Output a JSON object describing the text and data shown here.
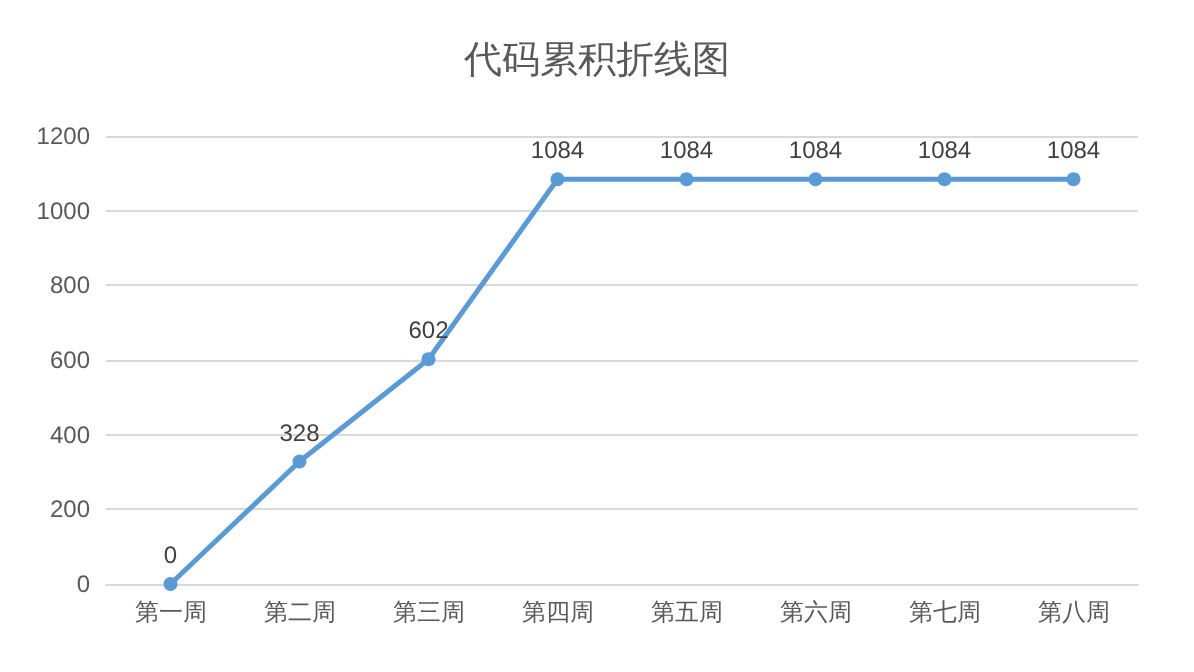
{
  "chart_data": {
    "type": "line",
    "title": "代码累积折线图",
    "categories": [
      "第一周",
      "第二周",
      "第三周",
      "第四周",
      "第五周",
      "第六周",
      "第七周",
      "第八周"
    ],
    "series": [
      {
        "color": "#5b9bd5",
        "values": [
          0,
          328,
          602,
          1084,
          1084,
          1084,
          1084,
          1084
        ]
      }
    ],
    "ylim": [
      0,
      1200
    ],
    "yticks": [
      0,
      200,
      400,
      600,
      800,
      1000,
      1200
    ],
    "grid": "y",
    "marker": "circle",
    "line_style": "solid",
    "data_labels": true
  }
}
